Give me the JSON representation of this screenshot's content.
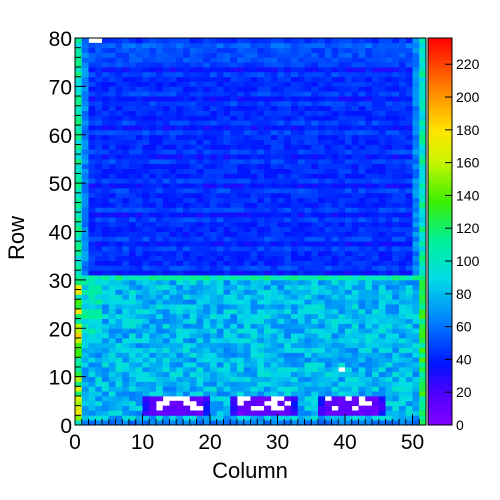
{
  "chart_data": {
    "type": "heatmap",
    "title": "",
    "xlabel": "Column",
    "ylabel": "Row",
    "xlim": [
      0,
      52
    ],
    "ylim": [
      0,
      80
    ],
    "x_ticks": [
      0,
      10,
      20,
      30,
      40,
      50
    ],
    "y_ticks": [
      0,
      10,
      20,
      30,
      40,
      50,
      60,
      70,
      80
    ],
    "colorbar": {
      "min": 0,
      "max": 236,
      "ticks": [
        0,
        20,
        40,
        60,
        80,
        100,
        120,
        140,
        160,
        180,
        200,
        220
      ],
      "palette": "rainbow (violet-blue-cyan-green-yellow-orange-red)"
    },
    "grid": false,
    "description_regions": [
      {
        "region": "rows 31-80",
        "typical_value": 40
      },
      {
        "region": "rows 0-30",
        "typical_value": 75
      },
      {
        "region": "empty bins, row 2-6",
        "columns": [
          [
            11,
            19
          ],
          [
            24,
            32
          ],
          [
            37,
            45
          ]
        ]
      }
    ]
  }
}
